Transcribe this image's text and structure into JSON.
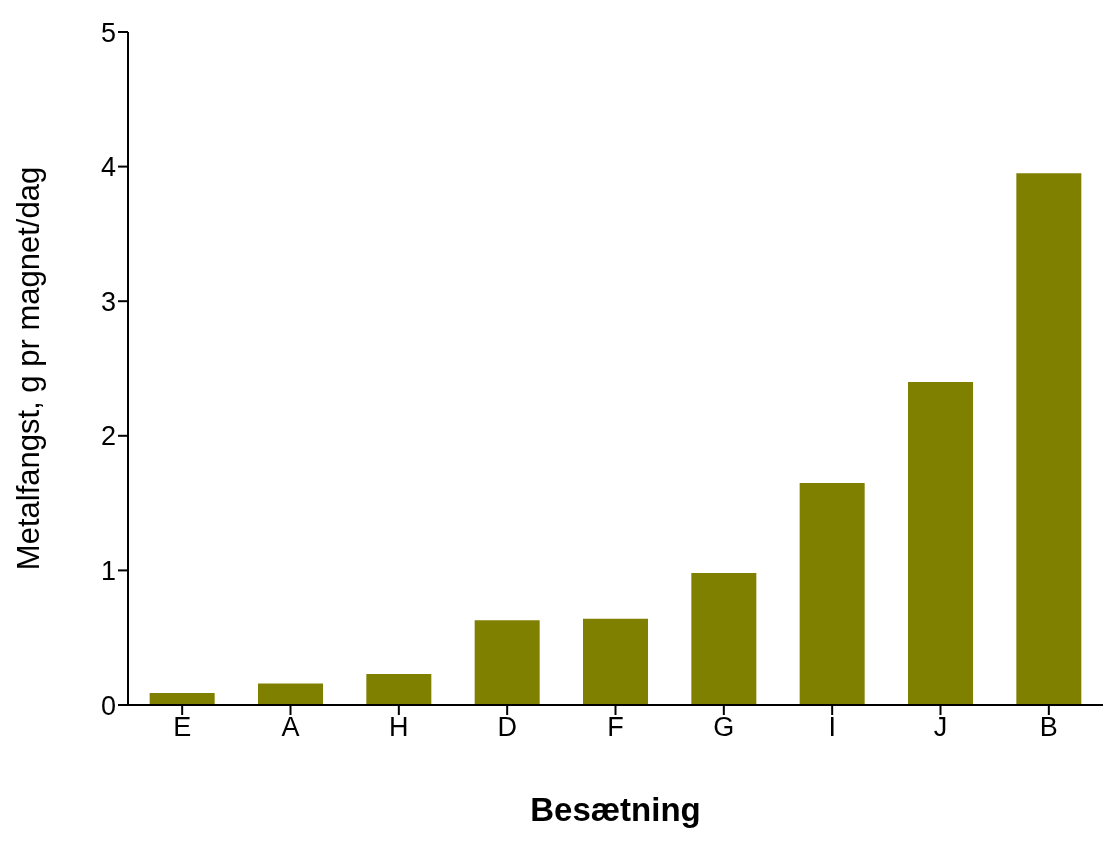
{
  "chart_data": {
    "type": "bar",
    "xlabel": "Besætning",
    "ylabel": "Metalfangst, g pr magnet/dag",
    "categories": [
      "E",
      "A",
      "H",
      "D",
      "F",
      "G",
      "I",
      "J",
      "B"
    ],
    "values": [
      0.09,
      0.16,
      0.23,
      0.63,
      0.64,
      0.98,
      1.65,
      2.4,
      3.95
    ],
    "color": "#808000",
    "ylim": [
      0,
      5
    ],
    "yticks": [
      0,
      1,
      2,
      3,
      4,
      5
    ],
    "grid": false,
    "legend": false
  }
}
